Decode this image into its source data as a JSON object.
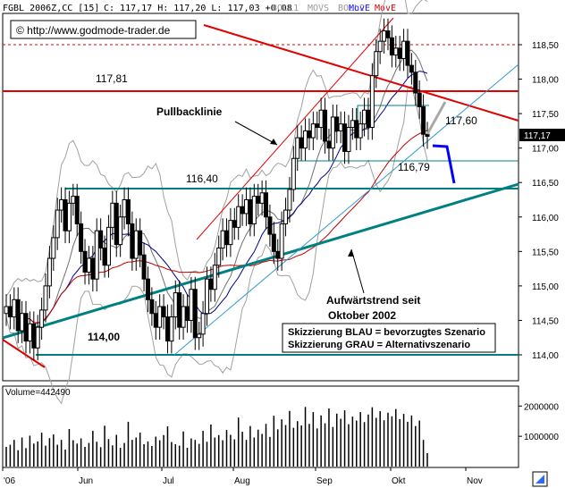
{
  "header": {
    "symbol": "FGBL 2006Z,CC [15]",
    "quote": "C: 117,17 H: 117,20 L: 117,03 +0,08",
    "ind_boll1": "BOLL1",
    "ind_movs": "MOVS",
    "ind_boll2": "BOLL2",
    "ind_move1": "MovE",
    "ind_move2": "MovE",
    "watermark": "© http://www.godmode-trader.de"
  },
  "colors": {
    "background": "#ffffff",
    "resistance": "#e00000",
    "support": "#008080",
    "trend_light": "#3399cc",
    "boll": "#a0a0a0",
    "move_blue": "#00008b",
    "move_red": "#c00000",
    "scenario_blue": "#0000ff",
    "scenario_grey": "#a9a9a9",
    "price_badge": "#000000"
  },
  "annotations": {
    "lvl_117_81": "117,81",
    "lvl_116_40": "116,40",
    "lvl_114_00": "114,00",
    "lvl_117_60": "117,60",
    "lvl_116_79": "116,79",
    "pullback": "Pullbacklinie",
    "trend_line1": "Aufwärtstrend seit",
    "trend_line2": "Oktober 2002",
    "legend_blue": "Skizzierung BLAU = bevorzugtes Szenario",
    "legend_grey": "Skizzierung GRAU = Alternativszenario"
  },
  "volume_label": "Volume=442490",
  "chart_data": [
    {
      "type": "candlestick",
      "title": "FGBL 2006Z,CC [15]",
      "x_labels": [
        "'06",
        "Jun",
        "Jul",
        "Aug",
        "Sep",
        "Okt",
        "Nov"
      ],
      "y_ticks": [
        "118,50",
        "118,00",
        "117,50",
        "117,00",
        "116,50",
        "116,00",
        "115,50",
        "115,00",
        "114,50",
        "114,00"
      ],
      "ylim": [
        113.8,
        119.0
      ],
      "last_price": "117,17",
      "close": [
        114.7,
        114.55,
        114.8,
        114.35,
        114.6,
        114.2,
        114.45,
        114.1,
        114.4,
        114.65,
        115.0,
        115.4,
        115.7,
        116.1,
        116.25,
        115.8,
        116.2,
        116.3,
        115.9,
        115.5,
        115.2,
        115.4,
        115.1,
        115.8,
        115.55,
        115.3,
        115.85,
        116.2,
        115.6,
        116.0,
        116.25,
        115.9,
        115.4,
        115.8,
        115.45,
        115.1,
        114.8,
        114.6,
        114.4,
        114.7,
        114.55,
        114.2,
        114.55,
        114.9,
        114.4,
        114.7,
        114.5,
        114.95,
        114.25,
        114.3,
        114.6,
        115.1,
        114.95,
        115.3,
        115.55,
        115.8,
        115.6,
        115.95,
        115.85,
        116.15,
        116.05,
        116.25,
        115.9,
        116.3,
        116.2,
        116.35,
        116.0,
        115.75,
        115.5,
        115.4,
        115.9,
        116.1,
        116.4,
        116.85,
        117.15,
        117.0,
        117.25,
        117.15,
        117.35,
        117.3,
        117.55,
        117.1,
        117.0,
        117.45,
        117.25,
        117.35,
        116.95,
        117.3,
        117.4,
        117.15,
        117.35,
        117.55,
        117.3,
        118.05,
        118.4,
        118.55,
        118.7,
        118.6,
        118.35,
        118.45,
        118.3,
        118.55,
        118.2,
        118.1,
        117.8,
        117.6,
        117.2,
        117.17
      ]
    },
    {
      "type": "bar",
      "title": "Volume=442490",
      "y_ticks": [
        "2000000",
        "1000000"
      ],
      "ylim": [
        0,
        2600000
      ],
      "values": [
        650000,
        720000,
        880000,
        540000,
        960000,
        610000,
        1020000,
        760000,
        830000,
        1120000,
        690000,
        940000,
        1060000,
        720000,
        880000,
        560000,
        1240000,
        870000,
        760000,
        930000,
        650000,
        780000,
        1180000,
        820000,
        640000,
        1350000,
        910000,
        700000,
        1050000,
        620000,
        780000,
        1480000,
        880000,
        960000,
        1120000,
        740000,
        830000,
        680000,
        990000,
        870000,
        1040000,
        1330000,
        810000,
        740000,
        690000,
        1160000,
        620000,
        930000,
        880000,
        750000,
        1180000,
        820000,
        1390000,
        960000,
        1040000,
        870000,
        1210000,
        1050000,
        900000,
        1620000,
        1150000,
        880000,
        1340000,
        960000,
        1220000,
        1080000,
        1410000,
        980000,
        1680000,
        1230000,
        1560000,
        1370000,
        1840000,
        1280000,
        1500000,
        1360000,
        1970000,
        1410000,
        1800000,
        1260000,
        1690000,
        1430000,
        1920000,
        1310000,
        1750000,
        1580000,
        1860000,
        1400000,
        1650000,
        1520000,
        1800000,
        1470000,
        1720000,
        1960000,
        1610000,
        1830000,
        1530000,
        1780000,
        1660000,
        1900000,
        1570000,
        1740000,
        1480000,
        1690000,
        1340000,
        1520000,
        880000,
        442490
      ]
    }
  ]
}
